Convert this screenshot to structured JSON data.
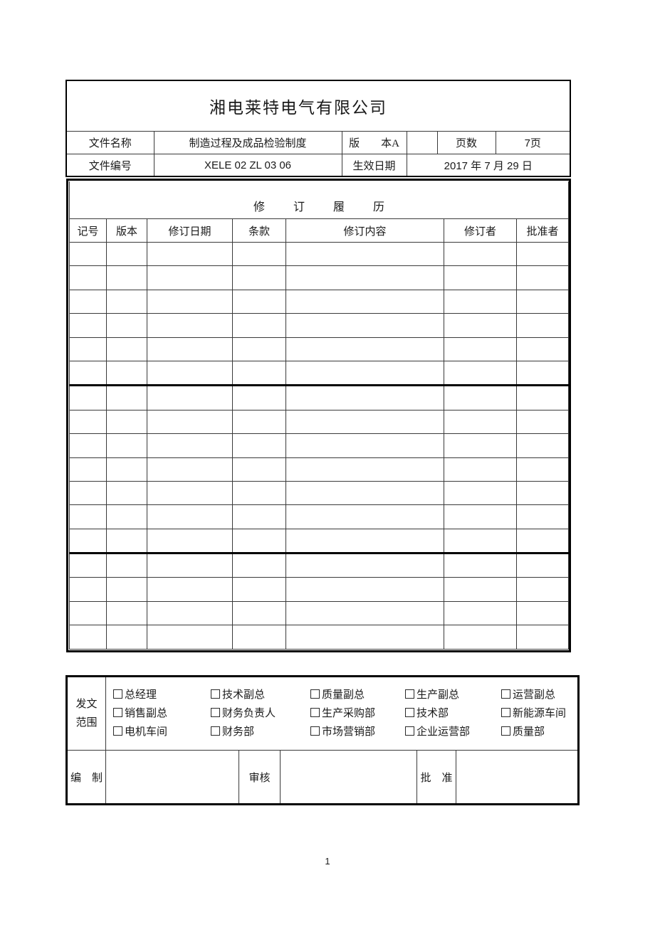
{
  "page": {
    "number": "1"
  },
  "doc_header": {
    "company_name": "湘电莱特电气有限公司",
    "doc_name_label": "文件名称",
    "doc_name_value": "制造过程及成品检验制度",
    "version_label": "版　　本A",
    "spare_cell": "",
    "pages_label": "页数",
    "pages_value": "7页",
    "doc_no_label": "文件编号",
    "doc_no_value": "XELE 02 ZL 03 06",
    "effective_date_label": "生效日期",
    "effective_date_value": "2017 年 7 月 29 日"
  },
  "revision": {
    "title": "修订履历",
    "columns": [
      "记号",
      "版本",
      "修订日期",
      "条款",
      "修订内容",
      "修订者",
      "批准者"
    ],
    "empty_row_count": 17,
    "thick_border_after_rows": [
      6,
      13
    ]
  },
  "distribution": {
    "scope_label": "发文\n范围",
    "checkbox_rows": [
      [
        "总经理",
        "技术副总",
        "质量副总",
        "生产副总",
        "运营副总"
      ],
      [
        "销售副总",
        "财务负责人",
        "生产采购部",
        "技术部",
        "新能源车间"
      ],
      [
        "电机车间",
        "财务部",
        "市场营销部",
        "企业运营部",
        "质量部"
      ]
    ],
    "all_checked": false
  },
  "signoff": {
    "prepare_label": "编　制",
    "review_label": "审核",
    "approve_label": "批　准"
  }
}
